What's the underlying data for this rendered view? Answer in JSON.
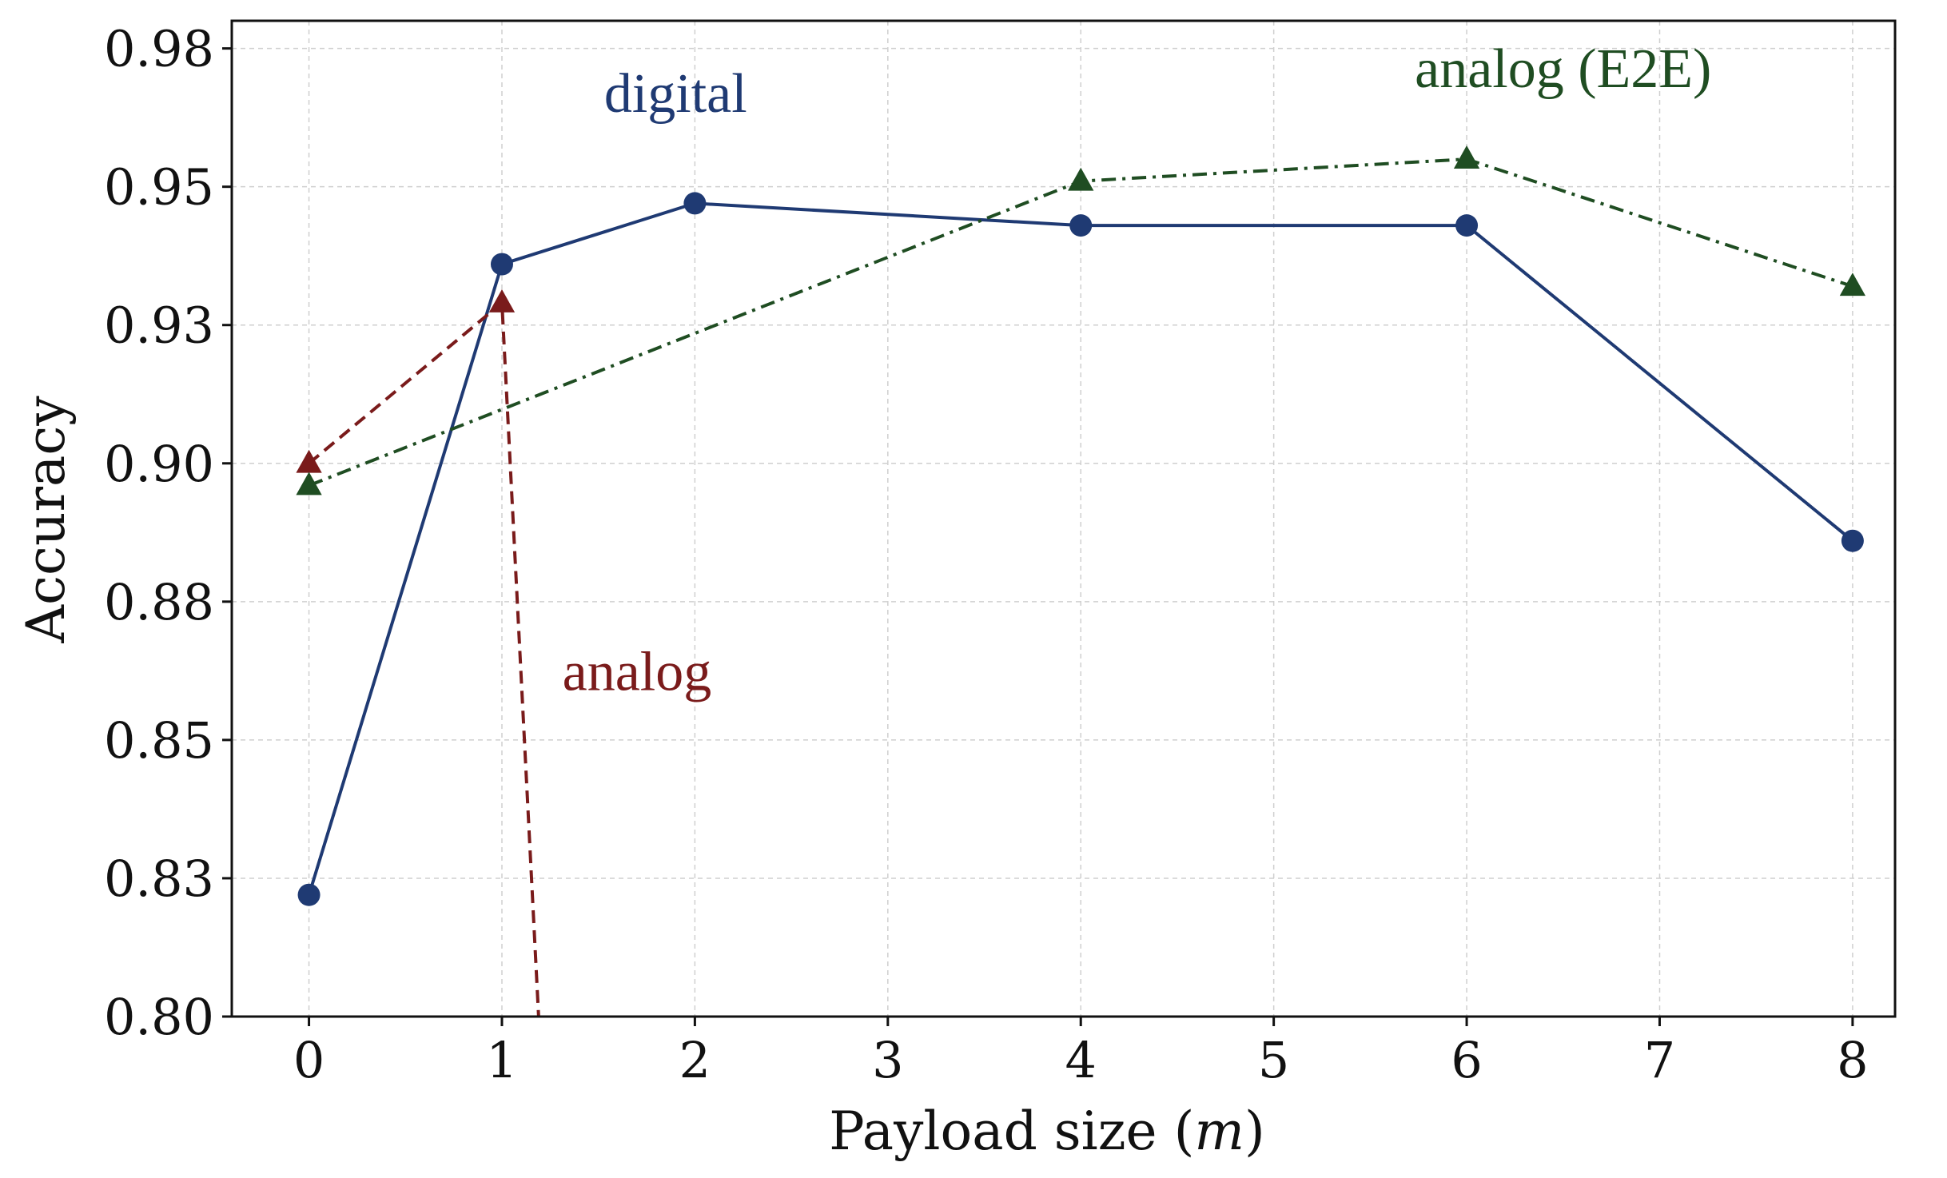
{
  "chart_data": {
    "type": "line",
    "title": "",
    "xlabel": "Payload size",
    "xlabel_var": "m",
    "ylabel": "Accuracy",
    "xlim": [
      -0.4,
      8.22
    ],
    "ylim": [
      0.8,
      0.98
    ],
    "xticks": [
      0,
      1,
      2,
      3,
      4,
      5,
      6,
      7,
      8
    ],
    "xtick_labels": [
      "0",
      "1",
      "2",
      "3",
      "4",
      "5",
      "6",
      "7",
      "8"
    ],
    "yticks": [
      0.8,
      0.825,
      0.85,
      0.875,
      0.9,
      0.925,
      0.95,
      0.975
    ],
    "ytick_labels": [
      "0.80",
      "0.83",
      "0.85",
      "0.88",
      "0.90",
      "0.93",
      "0.95",
      "0.98"
    ],
    "grid": true,
    "series": [
      {
        "name": "digital",
        "color": "#1f3a73",
        "marker": "circle",
        "linestyle": "solid",
        "x": [
          0,
          1,
          2,
          4,
          6,
          8
        ],
        "values": [
          0.822,
          0.936,
          0.947,
          0.943,
          0.943,
          0.886
        ]
      },
      {
        "name": "analog",
        "color": "#7a1b1b",
        "marker": "triangle",
        "linestyle": "dashed",
        "x": [
          0,
          1,
          1.19
        ],
        "values": [
          0.9,
          0.929,
          0.8
        ]
      },
      {
        "name": "analog (E2E)",
        "color": "#1f4d22",
        "marker": "triangle",
        "linestyle": "dashdot",
        "x": [
          0,
          4,
          6,
          8
        ],
        "values": [
          0.896,
          0.951,
          0.955,
          0.932
        ]
      }
    ],
    "annotations": [
      {
        "text": "digital",
        "series": 0,
        "x": 1.9,
        "y": 0.9635
      },
      {
        "text": "analog",
        "series": 1,
        "x": 1.7,
        "y": 0.859
      },
      {
        "text": "analog (E2E)",
        "series": 2,
        "x": 6.5,
        "y": 0.968
      }
    ]
  }
}
